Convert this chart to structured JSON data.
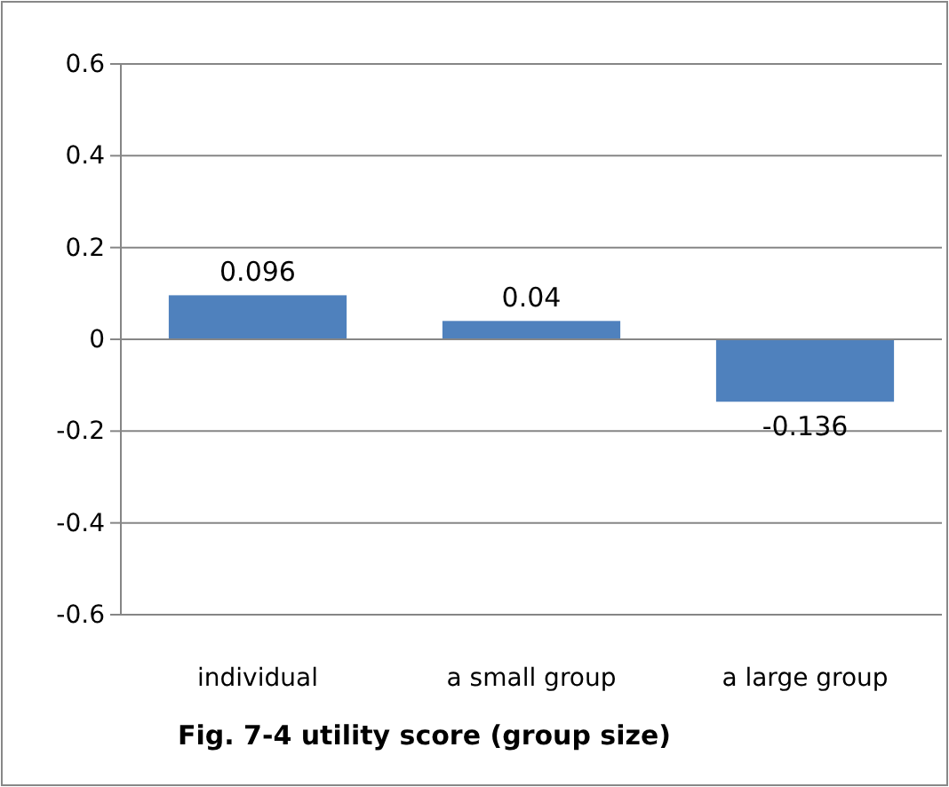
{
  "chart_data": {
    "type": "bar",
    "title": "Fig. 7-4 utility score (group size)",
    "categories": [
      "individual",
      "a small group",
      "a large group"
    ],
    "values": [
      0.096,
      0.04,
      -0.136
    ],
    "color": "#4f81bd",
    "ylim": [
      -0.6,
      0.6
    ],
    "yticks": [
      -0.6,
      -0.4,
      -0.2,
      0,
      0.2,
      0.4,
      0.6
    ],
    "grid": "y",
    "data_labels": true
  }
}
